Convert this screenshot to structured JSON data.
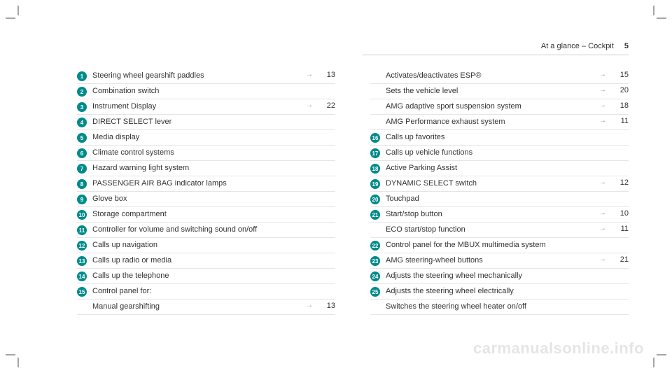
{
  "header": {
    "title": "At a glance – Cockpit",
    "page": "5"
  },
  "left": [
    {
      "n": "1",
      "label": "Steering wheel gearshift paddles",
      "page": "13"
    },
    {
      "n": "2",
      "label": "Combination switch"
    },
    {
      "n": "3",
      "label": "Instrument Display",
      "page": "22"
    },
    {
      "n": "4",
      "label": "DIRECT SELECT lever"
    },
    {
      "n": "5",
      "label": "Media display"
    },
    {
      "n": "6",
      "label": "Climate control systems"
    },
    {
      "n": "7",
      "label": "Hazard warning light system"
    },
    {
      "n": "8",
      "label": "PASSENGER AIR BAG indicator lamps"
    },
    {
      "n": "9",
      "label": "Glove box"
    },
    {
      "n": "10",
      "label": "Storage compartment"
    },
    {
      "n": "11",
      "label": "Controller for volume and switching sound on/off"
    },
    {
      "n": "12",
      "label": "Calls up navigation"
    },
    {
      "n": "13",
      "label": "Calls up radio or media"
    },
    {
      "n": "14",
      "label": "Calls up the telephone"
    },
    {
      "n": "15",
      "label": "Control panel for:"
    },
    {
      "n": "",
      "label": "Manual gearshifting",
      "page": "13"
    }
  ],
  "right": [
    {
      "n": "",
      "label": "Activates/deactivates ESP®",
      "page": "15"
    },
    {
      "n": "",
      "label": "Sets the vehicle level",
      "page": "20"
    },
    {
      "n": "",
      "label": "AMG adaptive sport suspension system",
      "page": "18"
    },
    {
      "n": "",
      "label": "AMG Performance exhaust system",
      "page": "11"
    },
    {
      "n": "16",
      "label": "Calls up favorites"
    },
    {
      "n": "17",
      "label": "Calls up vehicle functions"
    },
    {
      "n": "18",
      "label": "Active Parking Assist"
    },
    {
      "n": "19",
      "label": "DYNAMIC SELECT switch",
      "page": "12"
    },
    {
      "n": "20",
      "label": "Touchpad"
    },
    {
      "n": "21",
      "label": "Start/stop button",
      "page": "10"
    },
    {
      "n": "",
      "label": "ECO start/stop function",
      "page": "11"
    },
    {
      "n": "22",
      "label": "Control panel for the MBUX multimedia system"
    },
    {
      "n": "23",
      "label": "AMG steering-wheel buttons",
      "page": "21"
    },
    {
      "n": "24",
      "label": "Adjusts the steering wheel mechanically"
    },
    {
      "n": "25",
      "label": "Adjusts the steering wheel electrically"
    },
    {
      "n": "",
      "label": "Switches the steering wheel heater on/off"
    }
  ],
  "watermark": "carmanualsonline.info",
  "style": {
    "bullet_color": "#008b8b",
    "bullet_text_color": "#ffffff",
    "text_color": "#333333",
    "divider_color": "#e5e5e5",
    "background": "#ffffff",
    "font_size": 11
  }
}
